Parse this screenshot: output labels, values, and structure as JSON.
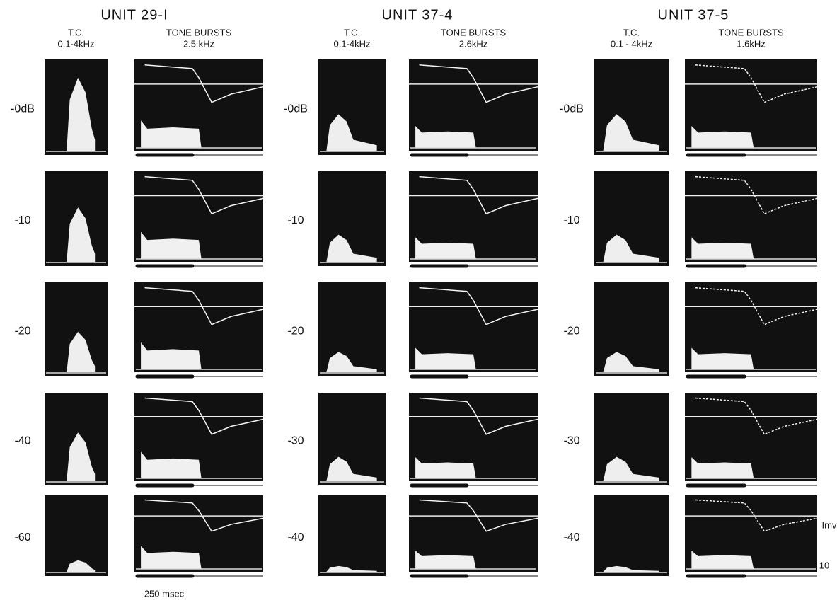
{
  "units": [
    {
      "title": "UNIT 29-I",
      "tc_label": "T.C.",
      "tc_range": "0.1-4kHz",
      "tone_label": "TONE BURSTS",
      "tone_freq": "2.5 kHz",
      "levels": [
        "-0dB",
        "-10",
        "-20",
        "-40",
        "-60"
      ]
    },
    {
      "title": "UNIT 37-4",
      "tc_label": "T.C.",
      "tc_range": "0.1-4kHz",
      "tone_label": "TONE BURSTS",
      "tone_freq": "2.6kHz",
      "levels": [
        "-0dB",
        "-10",
        "-20",
        "-30",
        "-40"
      ]
    },
    {
      "title": "UNIT 37-5",
      "tc_label": "T.C.",
      "tc_range": "0.1 - 4kHz",
      "tone_label": "TONE BURSTS",
      "tone_freq": "1.6kHz",
      "levels": [
        "-0dB",
        "-10",
        "-20",
        "-30",
        "-40"
      ]
    }
  ],
  "time_scale": "250 msec",
  "voltage_scale": "Imv",
  "count_scale": "10"
}
